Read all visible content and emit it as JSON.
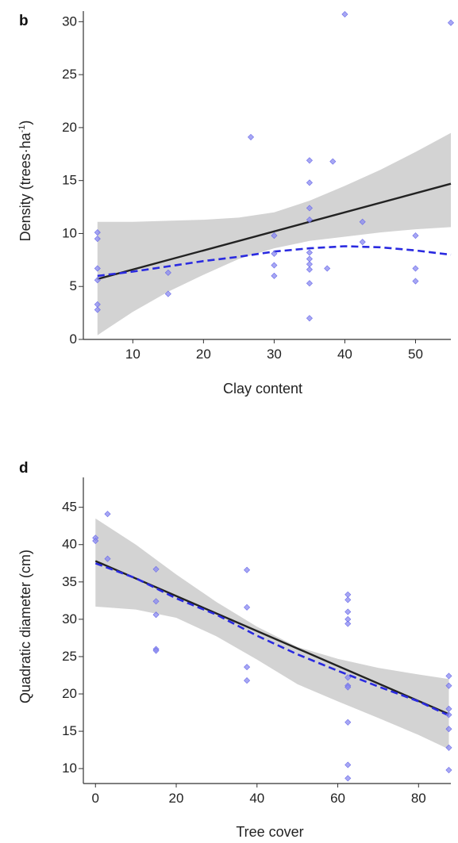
{
  "chart_data": [
    {
      "type": "scatter",
      "panel_label": "b",
      "xlabel": "Clay content",
      "ylabel": "Density (trees·ha",
      "ylabel_sup": "-1",
      "ylabel_end": ")",
      "xlim": [
        3,
        55
      ],
      "ylim": [
        0,
        31
      ],
      "xticks": [
        10,
        20,
        30,
        40,
        50
      ],
      "yticks": [
        0,
        5,
        10,
        15,
        20,
        25,
        30
      ],
      "colors": {
        "points": "#8a8af0",
        "fit": "#222222",
        "ci": "#d3d3d3",
        "smooth": "#2a2ae0"
      },
      "points": [
        {
          "x": 5,
          "y": 10.1
        },
        {
          "x": 5,
          "y": 9.5
        },
        {
          "x": 5,
          "y": 6.7
        },
        {
          "x": 5,
          "y": 5.6
        },
        {
          "x": 5,
          "y": 3.3
        },
        {
          "x": 5,
          "y": 2.8
        },
        {
          "x": 15,
          "y": 6.3
        },
        {
          "x": 15,
          "y": 4.3
        },
        {
          "x": 26.7,
          "y": 19.1
        },
        {
          "x": 30,
          "y": 9.8
        },
        {
          "x": 30,
          "y": 8.1
        },
        {
          "x": 30,
          "y": 7.0
        },
        {
          "x": 30,
          "y": 6.0
        },
        {
          "x": 35,
          "y": 16.9
        },
        {
          "x": 35,
          "y": 14.8
        },
        {
          "x": 35,
          "y": 12.4
        },
        {
          "x": 35,
          "y": 11.3
        },
        {
          "x": 35,
          "y": 8.2
        },
        {
          "x": 35,
          "y": 7.6
        },
        {
          "x": 35,
          "y": 7.1
        },
        {
          "x": 35,
          "y": 6.6
        },
        {
          "x": 35,
          "y": 5.3
        },
        {
          "x": 35,
          "y": 2.0
        },
        {
          "x": 37.5,
          "y": 6.7
        },
        {
          "x": 38.3,
          "y": 16.8
        },
        {
          "x": 40,
          "y": 30.7
        },
        {
          "x": 42.5,
          "y": 11.1
        },
        {
          "x": 42.5,
          "y": 9.2
        },
        {
          "x": 50,
          "y": 9.8
        },
        {
          "x": 50,
          "y": 6.7
        },
        {
          "x": 50,
          "y": 5.5
        },
        {
          "x": 55,
          "y": 29.9
        }
      ],
      "fit_line": {
        "x": [
          5,
          55
        ],
        "y": [
          5.7,
          14.7
        ]
      },
      "ci_band": {
        "x": [
          5,
          10,
          15,
          20,
          25,
          30,
          35,
          40,
          45,
          50,
          55
        ],
        "upper": [
          11.1,
          11.1,
          11.2,
          11.3,
          11.5,
          12.0,
          13.1,
          14.5,
          16.0,
          17.7,
          19.5
        ],
        "lower": [
          0.4,
          2.6,
          4.5,
          6.1,
          7.6,
          8.6,
          9.3,
          9.7,
          10.1,
          10.4,
          10.6
        ]
      },
      "smooth_curve": {
        "x": [
          5,
          10,
          15,
          20,
          25,
          30,
          35,
          40,
          45,
          50,
          55
        ],
        "y": [
          6.0,
          6.4,
          6.9,
          7.4,
          7.8,
          8.3,
          8.6,
          8.8,
          8.7,
          8.4,
          8.0
        ]
      }
    },
    {
      "type": "scatter",
      "panel_label": "d",
      "xlabel": "Tree cover",
      "ylabel": "Quadratic diameter (cm)",
      "xlim": [
        -3,
        88
      ],
      "ylim": [
        8,
        49
      ],
      "xticks": [
        0,
        20,
        40,
        60,
        80
      ],
      "yticks": [
        10,
        15,
        20,
        25,
        30,
        35,
        40,
        45
      ],
      "colors": {
        "points": "#8a8af0",
        "fit": "#222222",
        "ci": "#d3d3d3",
        "smooth": "#2a2ae0"
      },
      "points": [
        {
          "x": 0,
          "y": 40.9
        },
        {
          "x": 0,
          "y": 40.5
        },
        {
          "x": 3,
          "y": 44.1
        },
        {
          "x": 3,
          "y": 38.1
        },
        {
          "x": 15,
          "y": 36.7
        },
        {
          "x": 15,
          "y": 32.4
        },
        {
          "x": 15,
          "y": 30.6
        },
        {
          "x": 15,
          "y": 26.0
        },
        {
          "x": 15,
          "y": 25.8
        },
        {
          "x": 37.5,
          "y": 36.6
        },
        {
          "x": 37.5,
          "y": 31.6
        },
        {
          "x": 37.5,
          "y": 23.6
        },
        {
          "x": 37.5,
          "y": 21.8
        },
        {
          "x": 62.5,
          "y": 33.3
        },
        {
          "x": 62.5,
          "y": 32.6
        },
        {
          "x": 62.5,
          "y": 31.0
        },
        {
          "x": 62.5,
          "y": 30.0
        },
        {
          "x": 62.5,
          "y": 29.4
        },
        {
          "x": 62.5,
          "y": 22.2
        },
        {
          "x": 62.5,
          "y": 21.1
        },
        {
          "x": 62.5,
          "y": 20.9
        },
        {
          "x": 62.5,
          "y": 16.2
        },
        {
          "x": 62.5,
          "y": 10.5
        },
        {
          "x": 62.5,
          "y": 8.7
        },
        {
          "x": 87.5,
          "y": 22.4
        },
        {
          "x": 87.5,
          "y": 21.1
        },
        {
          "x": 87.5,
          "y": 18.0
        },
        {
          "x": 87.5,
          "y": 17.2
        },
        {
          "x": 87.5,
          "y": 15.3
        },
        {
          "x": 87.5,
          "y": 12.8
        },
        {
          "x": 87.5,
          "y": 9.8
        }
      ],
      "fit_line": {
        "x": [
          0,
          87.5
        ],
        "y": [
          37.8,
          17.3
        ]
      },
      "ci_band": {
        "x": [
          0,
          10,
          20,
          30,
          40,
          50,
          60,
          70,
          80,
          87.5
        ],
        "upper": [
          43.5,
          40.0,
          36.0,
          32.3,
          29.0,
          26.3,
          24.7,
          23.5,
          22.6,
          22.0
        ],
        "lower": [
          31.7,
          31.3,
          30.2,
          27.7,
          24.6,
          21.3,
          19.0,
          16.8,
          14.5,
          12.6
        ]
      },
      "smooth_curve": {
        "x": [
          0,
          10,
          20,
          30,
          40,
          50,
          60,
          70,
          80,
          87.5
        ],
        "y": [
          37.5,
          35.5,
          32.8,
          30.6,
          27.8,
          25.3,
          23.1,
          21.0,
          19.0,
          17.1
        ]
      }
    }
  ]
}
